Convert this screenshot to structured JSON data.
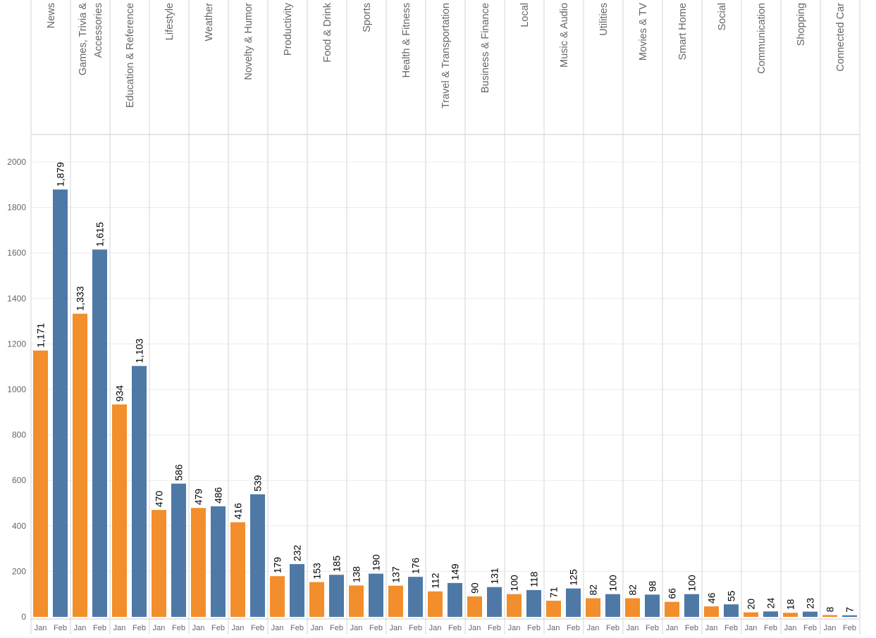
{
  "chart_data": {
    "type": "bar",
    "categories": [
      "News",
      "Games, Trivia & Accessories",
      "Education & Reference",
      "Lifestyle",
      "Weather",
      "Novelty & Humor",
      "Productivity",
      "Food & Drink",
      "Sports",
      "Health & Fitness",
      "Travel & Transportation",
      "Business & Finance",
      "Local",
      "Music & Audio",
      "Utilities",
      "Movies & TV",
      "Smart Home",
      "Social",
      "Communication",
      "Shopping",
      "Connected Car"
    ],
    "series": [
      {
        "label": "Jan",
        "color": "#f28e2b",
        "values": [
          1171,
          1333,
          934,
          470,
          479,
          416,
          179,
          153,
          138,
          137,
          112,
          90,
          100,
          71,
          82,
          82,
          66,
          46,
          20,
          18,
          8
        ],
        "data_labels": [
          "1,171",
          "1,333",
          "934",
          "470",
          "479",
          "416",
          "179",
          "153",
          "138",
          "137",
          "112",
          "90",
          "100",
          "71",
          "82",
          "82",
          "66",
          "46",
          "20",
          "18",
          "8"
        ]
      },
      {
        "label": "Feb",
        "color": "#4e79a7",
        "values": [
          1879,
          1615,
          1103,
          586,
          486,
          539,
          232,
          185,
          190,
          176,
          149,
          131,
          118,
          125,
          100,
          98,
          100,
          55,
          24,
          23,
          7
        ],
        "data_labels": [
          "1,879",
          "1,615",
          "1,103",
          "586",
          "486",
          "539",
          "232",
          "185",
          "190",
          "176",
          "149",
          "131",
          "118",
          "125",
          "100",
          "98",
          "100",
          "55",
          "24",
          "23",
          "7"
        ]
      }
    ],
    "yticks": [
      "0",
      "200",
      "400",
      "600",
      "800",
      "1000",
      "1200",
      "1400",
      "1600",
      "1800",
      "2000"
    ],
    "ylim": [
      0,
      2120
    ],
    "grid": true,
    "legend": "none"
  }
}
